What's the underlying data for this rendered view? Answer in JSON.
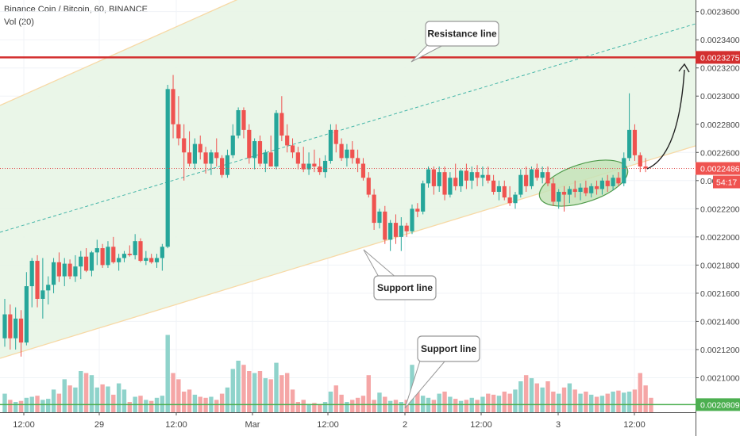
{
  "header": {
    "symbol_line": "Binance Coin / Bitcoin, 60, BINANCE",
    "indicator_line": "Vol (20)"
  },
  "chart_data": {
    "type": "candlestick",
    "title": "Binance Coin / Bitcoin, 60, BINANCE",
    "indicator": "Vol (20)",
    "y_axis": {
      "ticks": [
        "0.0023600",
        "0.0023400",
        "0.0023200",
        "0.0023000",
        "0.0022800",
        "0.0022600",
        "0.0022400",
        "0.0022200",
        "0.0022000",
        "0.0021800",
        "0.0021600",
        "0.0021400",
        "0.0021200",
        "0.0021000"
      ],
      "range": [
        0.00208,
        0.002366
      ]
    },
    "x_axis": {
      "ticks": [
        "12:00",
        "29",
        "12:00",
        "Mar",
        "12:00",
        "2",
        "12:00",
        "3",
        "12:00"
      ]
    },
    "price_labels": {
      "resistance": "0.0023275",
      "last_price": "0.0022486",
      "countdown": "54:17",
      "volume_ma": "0.0020809"
    },
    "annotations": {
      "resistance_callout": "Resistance line",
      "support_callout_1": "Support line",
      "support_callout_2": "Support line"
    },
    "candles": [
      [
        0.002128,
        0.002156,
        0.002122,
        0.002145
      ],
      [
        0.002145,
        0.002152,
        0.00212,
        0.002128
      ],
      [
        0.002128,
        0.00215,
        0.00212,
        0.002142
      ],
      [
        0.002142,
        0.002148,
        0.002115,
        0.002125
      ],
      [
        0.002125,
        0.002175,
        0.002123,
        0.002165
      ],
      [
        0.002165,
        0.002185,
        0.00215,
        0.002183
      ],
      [
        0.002183,
        0.002187,
        0.00215,
        0.002156
      ],
      [
        0.002156,
        0.002185,
        0.002142,
        0.002162
      ],
      [
        0.002162,
        0.002172,
        0.002152,
        0.002166
      ],
      [
        0.002166,
        0.002185,
        0.00216,
        0.002182
      ],
      [
        0.002182,
        0.002189,
        0.002168,
        0.002172
      ],
      [
        0.002172,
        0.002185,
        0.002165,
        0.002181
      ],
      [
        0.002181,
        0.002184,
        0.00217,
        0.002172
      ],
      [
        0.002172,
        0.002187,
        0.002168,
        0.002179
      ],
      [
        0.002179,
        0.00219,
        0.00217,
        0.002186
      ],
      [
        0.002186,
        0.002192,
        0.002175,
        0.002176
      ],
      [
        0.002176,
        0.00219,
        0.002172,
        0.002189
      ],
      [
        0.002189,
        0.002198,
        0.00218,
        0.002192
      ],
      [
        0.002192,
        0.002195,
        0.002178,
        0.00218
      ],
      [
        0.00218,
        0.002197,
        0.002178,
        0.002193
      ],
      [
        0.002193,
        0.0022,
        0.002181,
        0.002182
      ],
      [
        0.002182,
        0.002188,
        0.002176,
        0.002185
      ],
      [
        0.002185,
        0.00219,
        0.002182,
        0.002188
      ],
      [
        0.002188,
        0.002194,
        0.002186,
        0.002187
      ],
      [
        0.002187,
        0.002202,
        0.002184,
        0.002197
      ],
      [
        0.002197,
        0.002199,
        0.002182,
        0.002183
      ],
      [
        0.002183,
        0.00219,
        0.00218,
        0.002185
      ],
      [
        0.002185,
        0.002188,
        0.002181,
        0.002182
      ],
      [
        0.002182,
        0.002188,
        0.002178,
        0.002185
      ],
      [
        0.002185,
        0.002195,
        0.002176,
        0.002193
      ],
      [
        0.002193,
        0.002308,
        0.002192,
        0.002305
      ],
      [
        0.002305,
        0.002315,
        0.00227,
        0.00228
      ],
      [
        0.00228,
        0.0023,
        0.002265,
        0.00227
      ],
      [
        0.00227,
        0.00228,
        0.00224,
        0.00226
      ],
      [
        0.00226,
        0.002275,
        0.00225,
        0.002252
      ],
      [
        0.002252,
        0.00227,
        0.002248,
        0.002266
      ],
      [
        0.002266,
        0.002272,
        0.002255,
        0.00226
      ],
      [
        0.00226,
        0.002264,
        0.002245,
        0.002252
      ],
      [
        0.002252,
        0.002262,
        0.002244,
        0.00226
      ],
      [
        0.00226,
        0.00227,
        0.00225,
        0.002256
      ],
      [
        0.002256,
        0.002258,
        0.002242,
        0.002244
      ],
      [
        0.002244,
        0.002262,
        0.002242,
        0.002258
      ],
      [
        0.002258,
        0.00228,
        0.002256,
        0.002272
      ],
      [
        0.002272,
        0.002292,
        0.00227,
        0.00229
      ],
      [
        0.00229,
        0.002292,
        0.00227,
        0.002276
      ],
      [
        0.002276,
        0.00228,
        0.002252,
        0.002256
      ],
      [
        0.002256,
        0.00227,
        0.002248,
        0.002268
      ],
      [
        0.002268,
        0.002272,
        0.00225,
        0.002252
      ],
      [
        0.002252,
        0.002262,
        0.002246,
        0.00226
      ],
      [
        0.00226,
        0.002272,
        0.00225,
        0.00225
      ],
      [
        0.00225,
        0.00229,
        0.002248,
        0.002288
      ],
      [
        0.002288,
        0.0023,
        0.002268,
        0.002272
      ],
      [
        0.002272,
        0.00228,
        0.00226,
        0.002265
      ],
      [
        0.002265,
        0.00227,
        0.002256,
        0.00226
      ],
      [
        0.00226,
        0.002264,
        0.002248,
        0.002252
      ],
      [
        0.002252,
        0.002264,
        0.002246,
        0.002248
      ],
      [
        0.002248,
        0.00226,
        0.002244,
        0.002252
      ],
      [
        0.002252,
        0.002262,
        0.002246,
        0.00225
      ],
      [
        0.00225,
        0.002256,
        0.002244,
        0.002246
      ],
      [
        0.002246,
        0.002258,
        0.002242,
        0.002254
      ],
      [
        0.002254,
        0.00228,
        0.002252,
        0.002276
      ],
      [
        0.002276,
        0.00228,
        0.00226,
        0.002266
      ],
      [
        0.002266,
        0.00227,
        0.002254,
        0.002256
      ],
      [
        0.002256,
        0.002266,
        0.00225,
        0.002262
      ],
      [
        0.002262,
        0.002268,
        0.002252,
        0.002256
      ],
      [
        0.002256,
        0.002262,
        0.002246,
        0.002252
      ],
      [
        0.002252,
        0.002256,
        0.00224,
        0.002242
      ],
      [
        0.002242,
        0.002246,
        0.002228,
        0.00223
      ],
      [
        0.00223,
        0.002234,
        0.002205,
        0.00221
      ],
      [
        0.00221,
        0.00222,
        0.002206,
        0.002218
      ],
      [
        0.002218,
        0.002222,
        0.002195,
        0.002198
      ],
      [
        0.002198,
        0.002212,
        0.00219,
        0.00221
      ],
      [
        0.00221,
        0.002216,
        0.002195,
        0.0022
      ],
      [
        0.0022,
        0.002214,
        0.00219,
        0.002208
      ],
      [
        0.002208,
        0.00221,
        0.0022,
        0.002204
      ],
      [
        0.002204,
        0.002223,
        0.002202,
        0.00222
      ],
      [
        0.00222,
        0.002224,
        0.002214,
        0.002218
      ],
      [
        0.002218,
        0.00224,
        0.002216,
        0.002238
      ],
      [
        0.002238,
        0.00225,
        0.002235,
        0.002248
      ],
      [
        0.002248,
        0.00225,
        0.00223,
        0.002236
      ],
      [
        0.002236,
        0.00225,
        0.002232,
        0.002246
      ],
      [
        0.002246,
        0.00225,
        0.002226,
        0.00223
      ],
      [
        0.00223,
        0.002246,
        0.002228,
        0.002242
      ],
      [
        0.002242,
        0.002252,
        0.002233,
        0.002236
      ],
      [
        0.002236,
        0.002248,
        0.002232,
        0.002247
      ],
      [
        0.002247,
        0.002252,
        0.002234,
        0.00224
      ],
      [
        0.00224,
        0.00225,
        0.002234,
        0.002246
      ],
      [
        0.002246,
        0.002251,
        0.002236,
        0.002242
      ],
      [
        0.002242,
        0.00225,
        0.002236,
        0.002244
      ],
      [
        0.002244,
        0.00225,
        0.002238,
        0.00224
      ],
      [
        0.00224,
        0.002244,
        0.00223,
        0.002232
      ],
      [
        0.002232,
        0.00224,
        0.002226,
        0.002236
      ],
      [
        0.002236,
        0.00224,
        0.002226,
        0.002228
      ],
      [
        0.002228,
        0.002236,
        0.002222,
        0.002224
      ],
      [
        0.002224,
        0.002232,
        0.00222,
        0.00223
      ],
      [
        0.00223,
        0.002248,
        0.002228,
        0.002244
      ],
      [
        0.002244,
        0.00225,
        0.002232,
        0.002236
      ],
      [
        0.002236,
        0.00225,
        0.002234,
        0.002248
      ],
      [
        0.002248,
        0.002252,
        0.00224,
        0.002242
      ],
      [
        0.002242,
        0.00225,
        0.002238,
        0.002246
      ],
      [
        0.002246,
        0.00225,
        0.002236,
        0.002238
      ],
      [
        0.002238,
        0.002242,
        0.002222,
        0.002225
      ],
      [
        0.002225,
        0.002234,
        0.00222,
        0.002232
      ],
      [
        0.002232,
        0.002236,
        0.002218,
        0.00223
      ],
      [
        0.00223,
        0.002236,
        0.002224,
        0.002234
      ],
      [
        0.002234,
        0.00224,
        0.002228,
        0.002232
      ],
      [
        0.002232,
        0.002238,
        0.002226,
        0.002235
      ],
      [
        0.002235,
        0.00224,
        0.002229,
        0.002231
      ],
      [
        0.002231,
        0.002238,
        0.002228,
        0.002236
      ],
      [
        0.002236,
        0.00224,
        0.00223,
        0.002234
      ],
      [
        0.002234,
        0.002242,
        0.00223,
        0.00224
      ],
      [
        0.00224,
        0.002244,
        0.002232,
        0.002236
      ],
      [
        0.002236,
        0.002244,
        0.002233,
        0.002242
      ],
      [
        0.002242,
        0.002246,
        0.002236,
        0.002238
      ],
      [
        0.002238,
        0.00226,
        0.002236,
        0.002256
      ],
      [
        0.002256,
        0.002302,
        0.002254,
        0.002276
      ],
      [
        0.002276,
        0.00228,
        0.002254,
        0.002258
      ],
      [
        0.002258,
        0.00226,
        0.002246,
        0.00225
      ],
      [
        0.00225,
        0.002256,
        0.002246,
        0.0022486
      ]
    ],
    "volume": [
      0.18,
      0.12,
      0.1,
      0.11,
      0.14,
      0.15,
      0.16,
      0.12,
      0.13,
      0.22,
      0.18,
      0.32,
      0.26,
      0.24,
      0.4,
      0.38,
      0.36,
      0.24,
      0.27,
      0.25,
      0.17,
      0.28,
      0.22,
      0.1,
      0.15,
      0.16,
      0.12,
      0.11,
      0.14,
      0.16,
      0.75,
      0.38,
      0.32,
      0.2,
      0.22,
      0.17,
      0.15,
      0.14,
      0.15,
      0.12,
      0.18,
      0.24,
      0.42,
      0.5,
      0.46,
      0.4,
      0.38,
      0.4,
      0.33,
      0.32,
      0.48,
      0.36,
      0.38,
      0.22,
      0.1,
      0.12,
      0.08,
      0.09,
      0.07,
      0.1,
      0.2,
      0.26,
      0.17,
      0.1,
      0.12,
      0.14,
      0.16,
      0.36,
      0.12,
      0.19,
      0.15,
      0.11,
      0.12,
      0.1,
      0.12,
      0.46,
      0.37,
      0.16,
      0.14,
      0.12,
      0.18,
      0.2,
      0.15,
      0.13,
      0.11,
      0.12,
      0.14,
      0.12,
      0.15,
      0.18,
      0.17,
      0.16,
      0.2,
      0.18,
      0.22,
      0.3,
      0.36,
      0.33,
      0.28,
      0.24,
      0.3,
      0.2,
      0.18,
      0.24,
      0.28,
      0.22,
      0.18,
      0.2,
      0.17,
      0.15,
      0.16,
      0.18,
      0.2,
      0.21,
      0.19,
      0.2,
      0.22,
      0.38,
      0.26,
      0.14
    ]
  }
}
